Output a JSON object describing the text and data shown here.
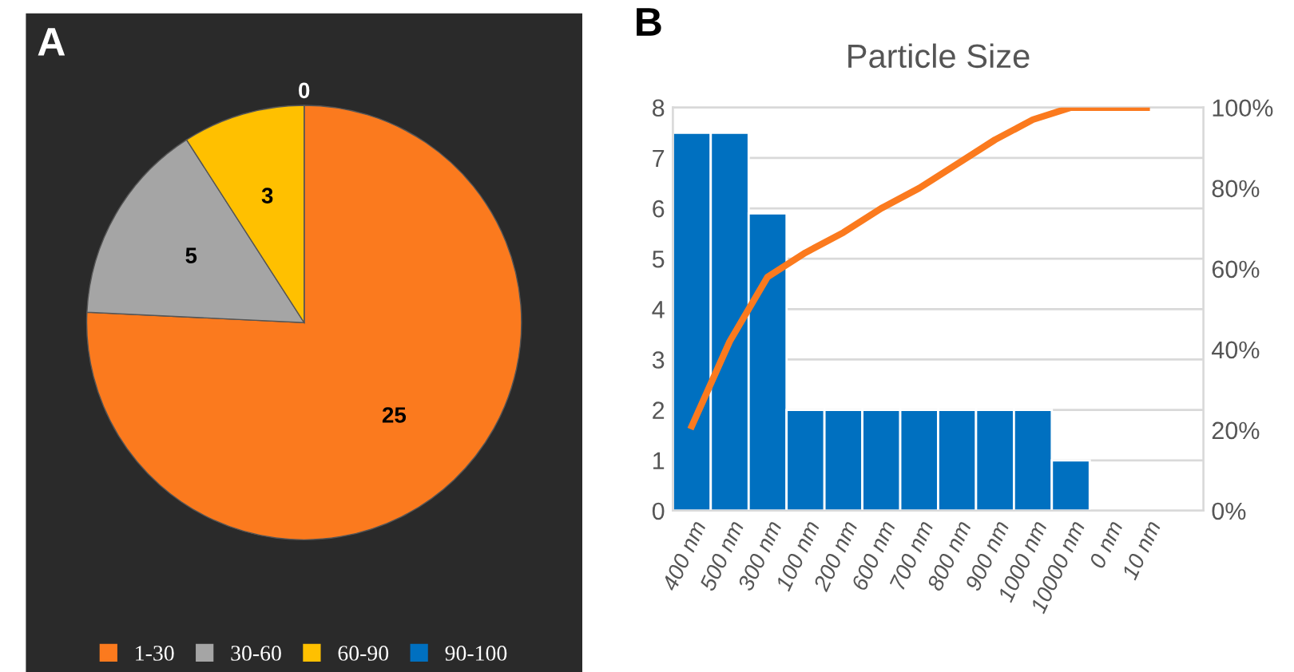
{
  "chart_data": [
    {
      "type": "pie",
      "annotations": [
        "A"
      ],
      "categories": [
        "1-30",
        "30-60",
        "60-90",
        "90-100"
      ],
      "values": [
        25,
        5,
        3,
        0
      ],
      "colors": [
        "#fb7a1e",
        "#a5a5a5",
        "#ffc000",
        "#0070c0"
      ],
      "value_labels": [
        "25",
        "5",
        "3",
        "0"
      ],
      "legend": "bottom"
    },
    {
      "type": "bar",
      "title": "Particle Size",
      "annotations": [
        "B"
      ],
      "categories": [
        "400 nm",
        "500 nm",
        "300 nm",
        "100 nm",
        "200 nm",
        "600 nm",
        "700 nm",
        "800 nm",
        "900 nm",
        "1000 nm",
        "10000 nm",
        "0 nm",
        "10 nm"
      ],
      "series": [
        {
          "type": "bar",
          "color": "#0070c0",
          "values": [
            7.5,
            7.5,
            5.9,
            2,
            2,
            2,
            2,
            2,
            2,
            2,
            1,
            null,
            null
          ]
        },
        {
          "type": "line",
          "axis": "y2",
          "color": "#fb7a1e",
          "values": [
            21,
            42,
            58,
            64,
            69,
            75,
            80,
            86,
            92,
            97,
            100,
            100,
            100
          ]
        }
      ],
      "ylim": [
        0,
        8
      ],
      "yticks": [
        0,
        1,
        2,
        3,
        4,
        5,
        6,
        7,
        8
      ],
      "y2lim": [
        0,
        100
      ],
      "y2ticks": [
        {
          "value": 0,
          "label": "0%"
        },
        {
          "value": 20,
          "label": "20%"
        },
        {
          "value": 40,
          "label": "40%"
        },
        {
          "value": 60,
          "label": "60%"
        },
        {
          "value": 80,
          "label": "80%"
        },
        {
          "value": 100,
          "label": "100%"
        }
      ],
      "grid": "y",
      "legend": false,
      "marker": "none",
      "line_style": "solid"
    }
  ]
}
